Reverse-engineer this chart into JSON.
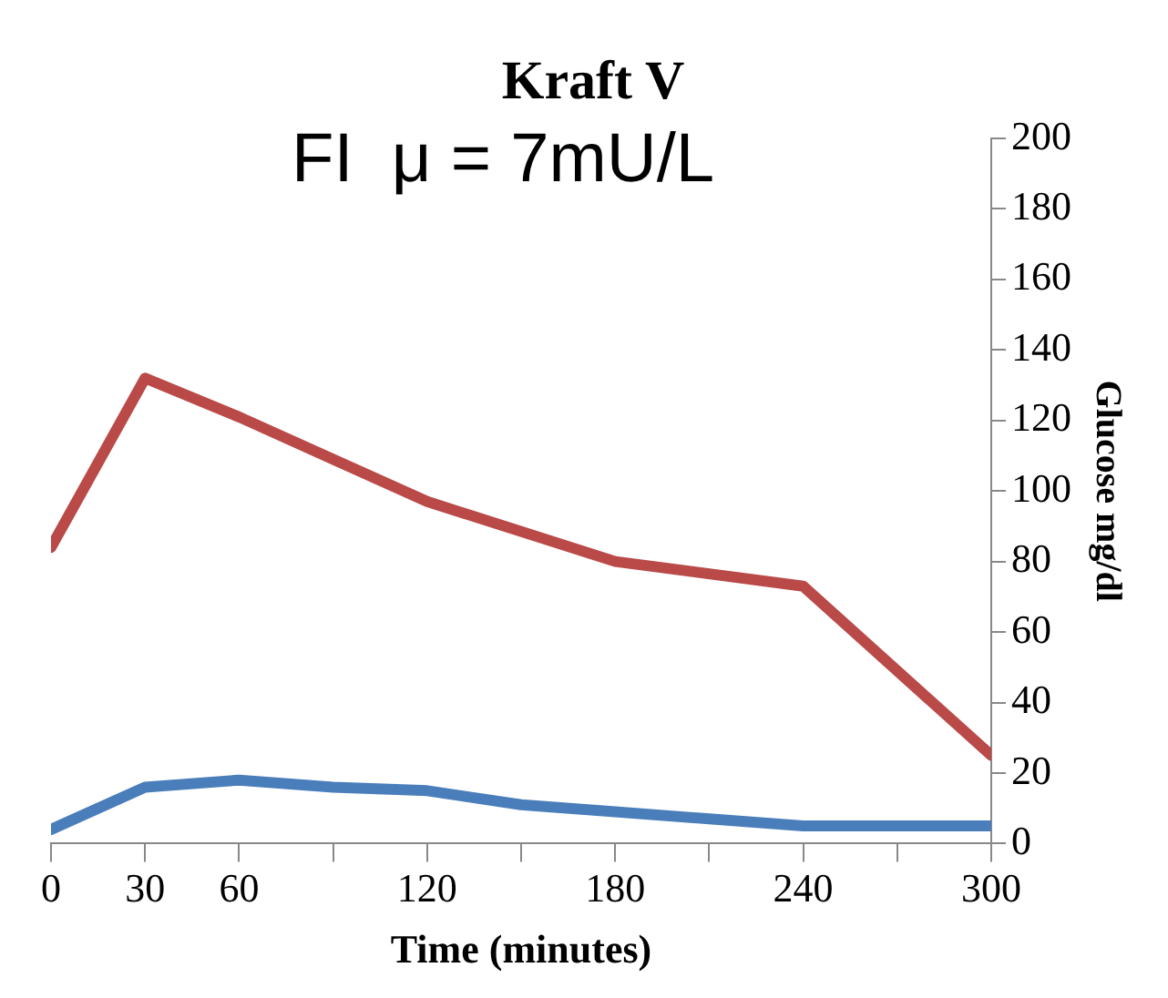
{
  "chart_data": {
    "type": "line",
    "title": "Kraft V",
    "annotations": [
      "FI  μ = 7mU/L"
    ],
    "xlabel": "Time (minutes)",
    "ylabel": "Glucose mg/dl",
    "xlim": [
      0,
      300
    ],
    "xticks": [
      0,
      30,
      60,
      {
        "value": 90,
        "label": null
      },
      120,
      {
        "value": 150,
        "label": null
      },
      180,
      {
        "value": 210,
        "label": null
      },
      240,
      {
        "value": 270,
        "label": null
      },
      300
    ],
    "ylim": [
      0,
      200
    ],
    "yticks": [
      0,
      20,
      40,
      60,
      80,
      100,
      120,
      140,
      160,
      180,
      200
    ],
    "grid": false,
    "legend": false,
    "marker": "none",
    "line_style": "solid",
    "series": [
      {
        "color": "#b94a48",
        "x": [
          0,
          30,
          60,
          120,
          180,
          240,
          300
        ],
        "values": [
          84,
          132,
          121,
          97,
          80,
          73,
          25
        ]
      },
      {
        "color": "#4a7ebb",
        "x": [
          0,
          30,
          60,
          90,
          120,
          150,
          180,
          210,
          240,
          300
        ],
        "values": [
          4,
          16,
          18,
          16,
          15,
          11,
          9,
          7,
          5,
          5
        ]
      }
    ]
  }
}
